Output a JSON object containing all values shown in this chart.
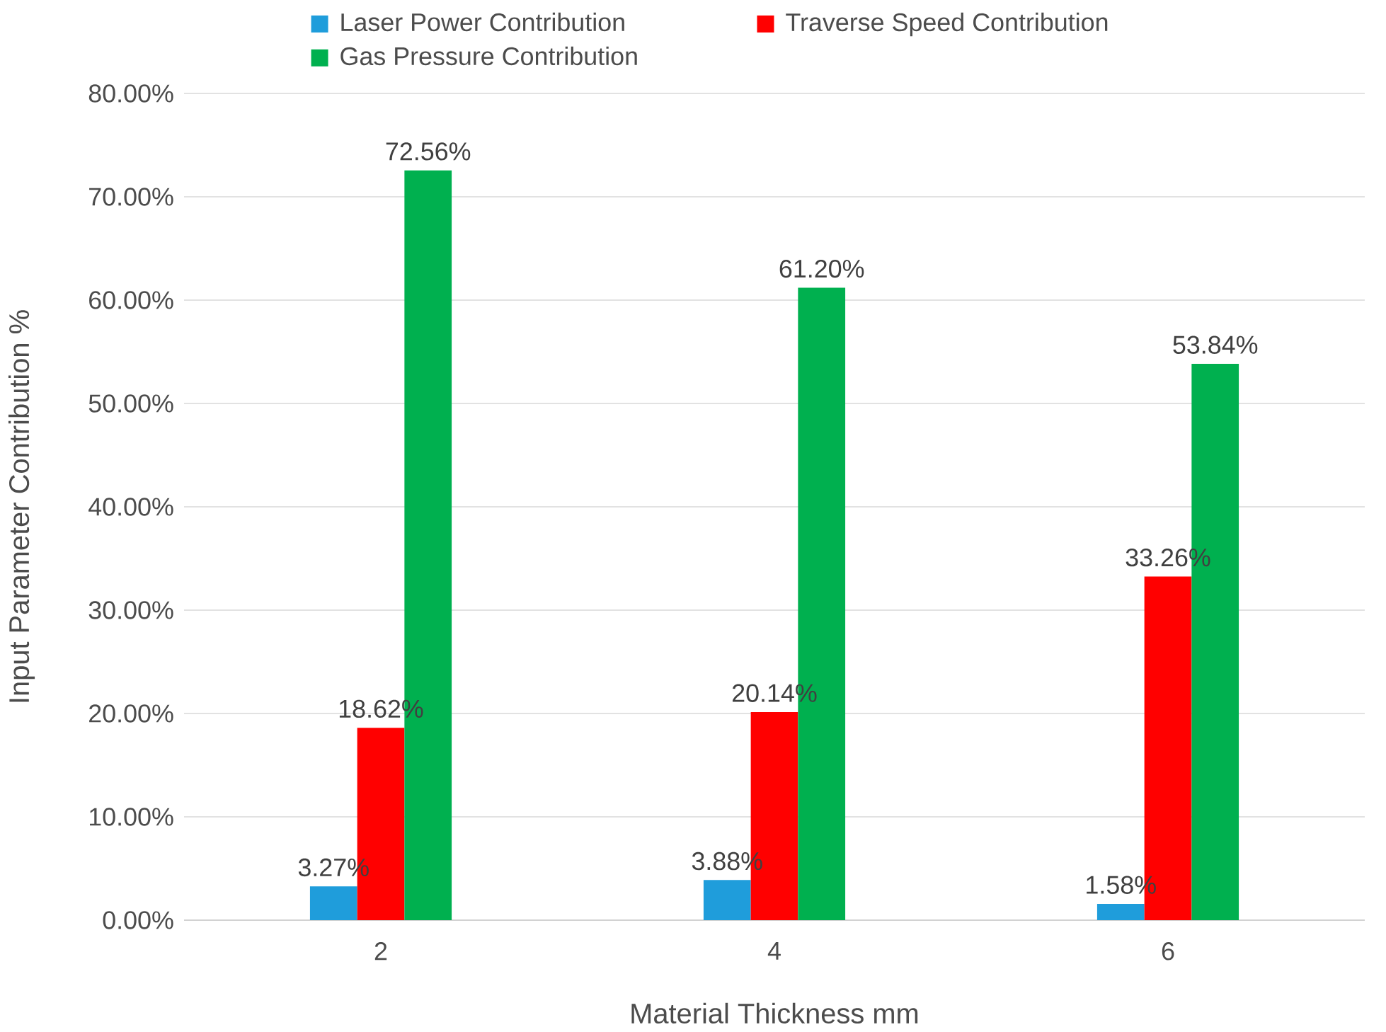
{
  "chart_data": {
    "type": "bar",
    "xlabel": "Material Thickness mm",
    "ylabel": "Input Parameter Contribution %",
    "categories": [
      "2",
      "4",
      "6"
    ],
    "series": [
      {
        "name": "Laser Power Contribution",
        "color": "#1f9ddb",
        "values": [
          3.27,
          3.88,
          1.58
        ],
        "value_labels": [
          "3.27%",
          "3.88%",
          "1.58%"
        ]
      },
      {
        "name": "Traverse Speed Contribution",
        "color": "#ff0000",
        "values": [
          18.62,
          20.14,
          33.26
        ],
        "value_labels": [
          "18.62%",
          "20.14%",
          "33.26%"
        ]
      },
      {
        "name": "Gas Pressure Contribution",
        "color": "#00b04f",
        "values": [
          72.56,
          61.2,
          53.84
        ],
        "value_labels": [
          "72.56%",
          "61.20%",
          "53.84%"
        ]
      }
    ],
    "ylim": [
      0,
      80
    ],
    "yticks": [
      {
        "value": 0,
        "label": "0.00%"
      },
      {
        "value": 10,
        "label": "10.00%"
      },
      {
        "value": 20,
        "label": "20.00%"
      },
      {
        "value": 30,
        "label": "30.00%"
      },
      {
        "value": 40,
        "label": "40.00%"
      },
      {
        "value": 50,
        "label": "50.00%"
      },
      {
        "value": 60,
        "label": "60.00%"
      },
      {
        "value": 70,
        "label": "70.00%"
      },
      {
        "value": 80,
        "label": "80.00%"
      }
    ],
    "grid": "y",
    "legend": "top"
  }
}
